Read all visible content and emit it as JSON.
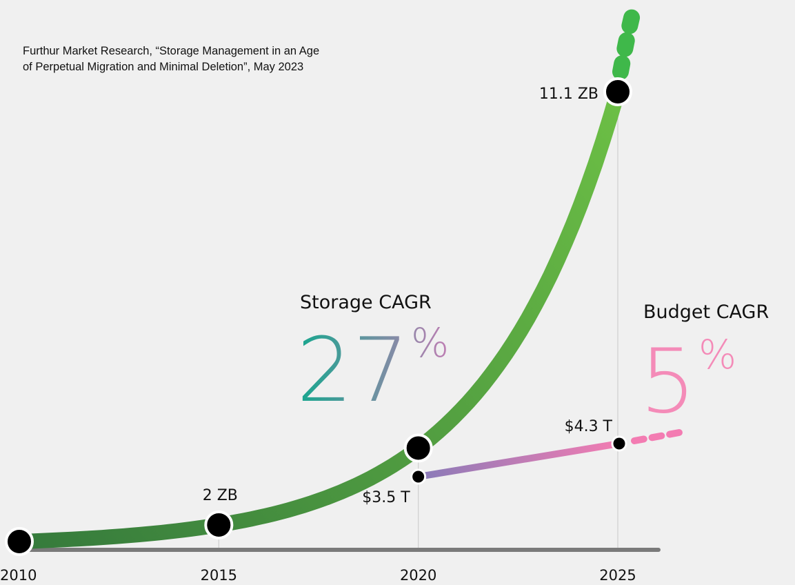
{
  "source_note": {
    "line1": "Furthur Market Research, “Storage Management in an Age",
    "line2": "of Perpetual Migration and Minimal Deletion”, May 2023"
  },
  "colors": {
    "background": "#f0f0f0",
    "axis": "#7a7a7a",
    "guide": "#cfcfcf",
    "storage_start": "#357a3c",
    "storage_end": "#6cbf45",
    "storage_projection": "#3fb84a",
    "budget_start": "#8b7bb8",
    "budget_end": "#f37cb2",
    "budget_projection": "#f37cb2",
    "storage_cagr_start": "#1aa68f",
    "storage_cagr_end": "#c27cb4",
    "budget_cagr": "#f48bb8",
    "marker": "#000000",
    "marker_ring": "#ffffff"
  },
  "chart_data": {
    "type": "line",
    "x_ticks": [
      "2010",
      "2015",
      "2020",
      "2025"
    ],
    "series": [
      {
        "unit": "ZB",
        "years": [
          2010,
          2015,
          2020,
          2025
        ],
        "labels": [
          "",
          "2 ZB",
          "",
          "11.1 ZB"
        ],
        "projection": "dashed beyond 2025"
      },
      {
        "unit": "$ T",
        "years": [
          2020,
          2025
        ],
        "values": [
          3.5,
          4.3
        ],
        "labels": [
          "$3.5 T",
          "$4.3 T"
        ],
        "projection": "dashed beyond 2025"
      }
    ],
    "annotations": [
      {
        "label": "Storage CAGR",
        "value": "27",
        "suffix": "%"
      },
      {
        "label": "Budget CAGR",
        "value": "5",
        "suffix": "%"
      }
    ],
    "legend": "none",
    "grid": false
  }
}
